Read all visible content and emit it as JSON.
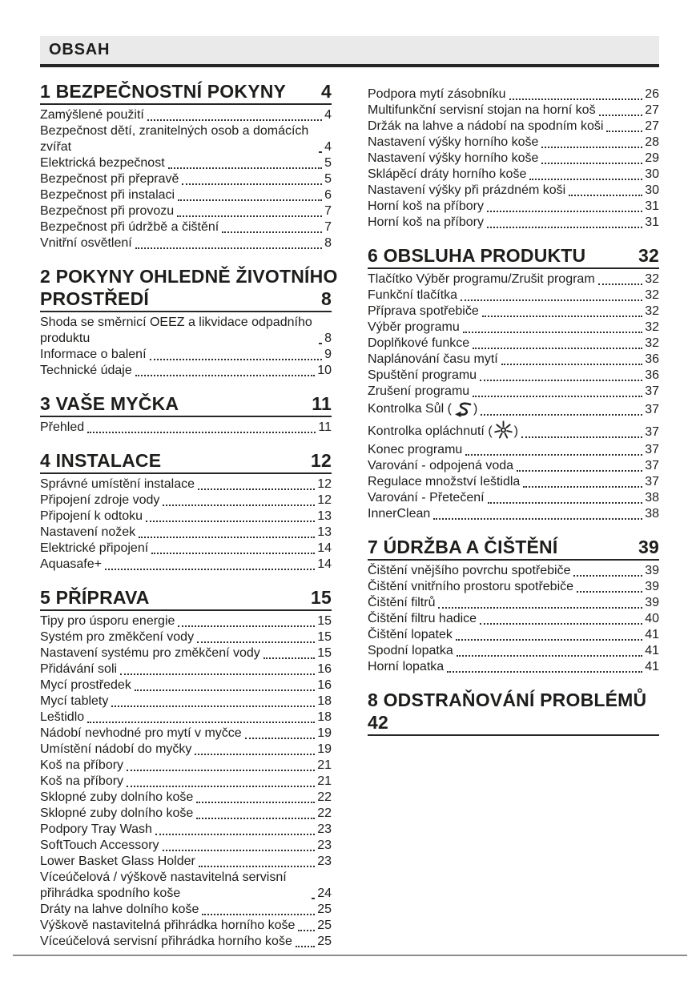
{
  "header": {
    "label": "OBSAH"
  },
  "colors": {
    "text": "#1d1d1b",
    "bar-bg": "#eaeaea",
    "rule-dark": "#262626",
    "footer-rule": "#8c8c8c"
  },
  "toc": {
    "left": [
      {
        "title_lines": [
          "1 BEZPEČNOSTNÍ POKYNY"
        ],
        "page": "4",
        "entries": [
          {
            "label": "Zamýšlené použití",
            "page": "4"
          },
          {
            "label": "Bezpečnost dětí, zranitelných osob a domácích zvířat",
            "page": "4"
          },
          {
            "label": "Elektrická bezpečnost",
            "page": "5"
          },
          {
            "label": "Bezpečnost při přepravě",
            "page": "5"
          },
          {
            "label": "Bezpečnost při instalaci",
            "page": "6"
          },
          {
            "label": "Bezpečnost při provozu",
            "page": "7"
          },
          {
            "label": "Bezpečnost při údržbě a čištění",
            "page": "7"
          },
          {
            "label": "Vnitřní osvětlení",
            "page": "8"
          }
        ]
      },
      {
        "title_lines": [
          "2 POKYNY OHLEDNĚ ŽIVOTNÍHO",
          "PROSTŘEDÍ"
        ],
        "page": "8",
        "entries": [
          {
            "label": "Shoda se směrnicí OEEZ a likvidace odpadního produktu",
            "page": "8"
          },
          {
            "label": "Informace o balení",
            "page": "9"
          },
          {
            "label": "Technické údaje",
            "page": "10"
          }
        ]
      },
      {
        "title_lines": [
          "3 VAŠE MYČKA"
        ],
        "page": "11",
        "entries": [
          {
            "label": "Přehled",
            "page": "11"
          }
        ]
      },
      {
        "title_lines": [
          "4 INSTALACE"
        ],
        "page": "12",
        "entries": [
          {
            "label": "Správné umístění instalace",
            "page": "12"
          },
          {
            "label": "Připojení zdroje vody",
            "page": "12"
          },
          {
            "label": "Připojení k odtoku",
            "page": "13"
          },
          {
            "label": "Nastavení nožek",
            "page": "13"
          },
          {
            "label": "Elektrické připojení",
            "page": "14"
          },
          {
            "label": "Aquasafe+",
            "page": "14"
          }
        ]
      },
      {
        "title_lines": [
          "5 PŘÍPRAVA"
        ],
        "page": "15",
        "entries": [
          {
            "label": "Tipy pro úsporu energie",
            "page": "15"
          },
          {
            "label": "Systém pro změkčení vody",
            "page": "15"
          },
          {
            "label": "Nastavení systému pro změkčení vody",
            "page": "15"
          },
          {
            "label": "Přidávání soli",
            "page": "16"
          },
          {
            "label": "Mycí prostředek",
            "page": "16"
          },
          {
            "label": "Mycí tablety",
            "page": "18"
          },
          {
            "label": "Leštidlo",
            "page": "18"
          },
          {
            "label": "Nádobí nevhodné pro mytí v myčce",
            "page": "19"
          },
          {
            "label": "Umístění nádobí do myčky",
            "page": "19"
          },
          {
            "label": "Koš na příbory",
            "page": "21"
          },
          {
            "label": "Koš na příbory",
            "page": "21"
          },
          {
            "label": "Sklopné zuby dolního koše",
            "page": "22"
          },
          {
            "label": "Sklopné zuby dolního koše",
            "page": "22"
          },
          {
            "label": "Podpory Tray Wash",
            "page": "23"
          },
          {
            "label": "SoftTouch Accessory",
            "page": "23"
          },
          {
            "label": "Lower Basket Glass Holder",
            "page": "23"
          },
          {
            "label": "Víceúčelová / výškově nastavitelná servisní přihrádka spodního koše",
            "page": "24"
          },
          {
            "label": "Dráty na lahve dolního koše",
            "page": "25"
          },
          {
            "label": "Výškově nastavitelná přihrádka horního koše",
            "page": "25"
          },
          {
            "label": "Víceúčelová servisní přihrádka horního koše",
            "page": "25"
          }
        ]
      }
    ],
    "right": [
      {
        "continuation": true,
        "title_lines": [],
        "page": "",
        "entries": [
          {
            "label": "Podpora mytí zásobníku",
            "page": "26"
          },
          {
            "label": "Multifunkční servisní stojan na horní koš",
            "page": "27"
          },
          {
            "label": "Držák na lahve a nádobí na spodním koši",
            "page": "27"
          },
          {
            "label": "Nastavení výšky horního koše",
            "page": "28"
          },
          {
            "label": "Nastavení výšky horního koše",
            "page": "29"
          },
          {
            "label": "Sklápěcí dráty horního koše",
            "page": "30"
          },
          {
            "label": "Nastavení výšky při prázdném koši",
            "page": "30"
          },
          {
            "label": "Horní koš na příbory",
            "page": "31"
          },
          {
            "label": "Horní koš na příbory",
            "page": "31"
          }
        ]
      },
      {
        "title_lines": [
          "6 OBSLUHA PRODUKTU"
        ],
        "page": "32",
        "entries": [
          {
            "label": "Tlačítko Výběr programu/Zrušit program",
            "page": "32"
          },
          {
            "label": "Funkční tlačítka",
            "page": "32"
          },
          {
            "label": "Příprava spotřebiče",
            "page": "32"
          },
          {
            "label": "Výběr programu",
            "page": "32"
          },
          {
            "label": "Doplňkové funkce",
            "page": "32"
          },
          {
            "label": "Naplánování času mytí",
            "page": "36"
          },
          {
            "label": "Spuštění programu",
            "page": "36"
          },
          {
            "label": "Zrušení programu",
            "page": "37"
          },
          {
            "label_pre": "Kontrolka Sůl (",
            "icon": "salt-indicator-icon",
            "label_post": ")",
            "page": "37"
          },
          {
            "label_pre": "Kontrolka opláchnutí (",
            "icon": "rinse-aid-indicator-icon",
            "label_post": ")",
            "page": "37"
          },
          {
            "label": "Konec programu",
            "page": "37"
          },
          {
            "label": "Varování - odpojená voda",
            "page": "37"
          },
          {
            "label": "Regulace množství leštidla",
            "page": "37"
          },
          {
            "label": "Varování - Přetečení",
            "page": "38"
          },
          {
            "label": "InnerClean",
            "page": "38"
          }
        ]
      },
      {
        "title_lines": [
          "7 ÚDRŽBA A ČIŠTĚNÍ"
        ],
        "page": "39",
        "entries": [
          {
            "label": "Čištění vnějšího povrchu spotřebiče",
            "page": "39"
          },
          {
            "label": "Čištění vnitřního prostoru spotřebiče",
            "page": "39"
          },
          {
            "label": "Čištění filtrů",
            "page": "39"
          },
          {
            "label": "Čištění filtru hadice",
            "page": "40"
          },
          {
            "label": "Čištění lopatek",
            "page": "41"
          },
          {
            "label": "Spodní lopatka",
            "page": "41"
          },
          {
            "label": "Horní lopatka",
            "page": "41"
          }
        ]
      },
      {
        "title_lines": [
          "8 ODSTRAŇOVÁNÍ PROBLÉMŮ"
        ],
        "page": "42",
        "page_on_own_line": true,
        "entries": []
      }
    ]
  }
}
